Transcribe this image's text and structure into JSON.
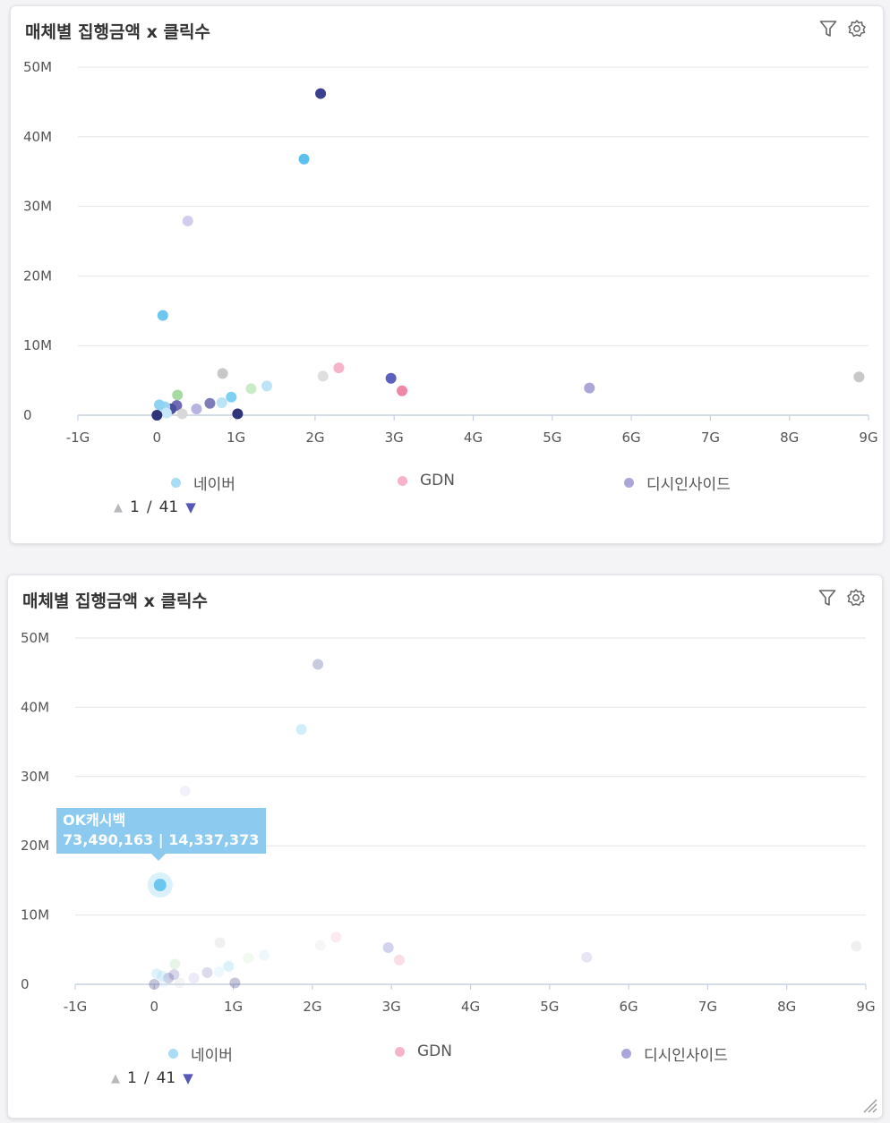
{
  "panels": [
    {
      "title": "매체별 집행금액 x 클릭수",
      "pager": {
        "current": "1",
        "separator": "/",
        "total": "41"
      }
    },
    {
      "title": "매체별 집행금액 x 클릭수",
      "pager": {
        "current": "1",
        "separator": "/",
        "total": "41"
      },
      "tooltip": {
        "name": "OK캐시백",
        "value": "73,490,163 | 14,337,373"
      }
    }
  ],
  "legend": [
    {
      "label": "네이버",
      "color": "#a9dcf5"
    },
    {
      "label": "GDN",
      "color": "#f7b3c9"
    },
    {
      "label": "디시인사이드",
      "color": "#aaa6da"
    }
  ],
  "icons": {
    "filter": "filter-icon",
    "settings": "gear-icon",
    "resize": "resize-grip-icon"
  },
  "chart_data": [
    {
      "type": "scatter",
      "xlim": [
        -1000000000,
        9000000000
      ],
      "ylim": [
        0,
        50000000
      ],
      "x_ticks": [
        -1000000000,
        0,
        1000000000,
        2000000000,
        3000000000,
        4000000000,
        5000000000,
        6000000000,
        7000000000,
        8000000000,
        9000000000
      ],
      "x_tick_labels": [
        "-1G",
        "0",
        "1G",
        "2G",
        "3G",
        "4G",
        "5G",
        "6G",
        "7G",
        "8G",
        "9G"
      ],
      "y_ticks": [
        0,
        10000000,
        20000000,
        30000000,
        40000000,
        50000000
      ],
      "y_tick_labels": [
        "0",
        "10M",
        "20M",
        "30M",
        "40M",
        "50M"
      ],
      "grid": "horizontal",
      "legend_position": "bottom",
      "points": [
        {
          "x": 2070000000,
          "y": 46200000,
          "color": "#3a3f8f"
        },
        {
          "x": 1860000000,
          "y": 36800000,
          "color": "#5bc0ee"
        },
        {
          "x": 390000000,
          "y": 27900000,
          "color": "#d2cdef"
        },
        {
          "x": 73490163,
          "y": 14337373,
          "color": "#6cc6ef"
        },
        {
          "x": 830000000,
          "y": 6000000,
          "color": "#c8c8c8"
        },
        {
          "x": 2300000000,
          "y": 6800000,
          "color": "#f7b3c9"
        },
        {
          "x": 2100000000,
          "y": 5600000,
          "color": "#dedede"
        },
        {
          "x": 2960000000,
          "y": 5300000,
          "color": "#5b5fbe"
        },
        {
          "x": 3100000000,
          "y": 3500000,
          "color": "#ef86a5"
        },
        {
          "x": 5470000000,
          "y": 3900000,
          "color": "#aaa6da"
        },
        {
          "x": 8880000000,
          "y": 5500000,
          "color": "#c8c8c8"
        },
        {
          "x": 1390000000,
          "y": 4200000,
          "color": "#bde3f7"
        },
        {
          "x": 1190000000,
          "y": 3800000,
          "color": "#c9ecc7"
        },
        {
          "x": 940000000,
          "y": 2600000,
          "color": "#7fd0f2"
        },
        {
          "x": 820000000,
          "y": 1800000,
          "color": "#bde3f7"
        },
        {
          "x": 670000000,
          "y": 1700000,
          "color": "#7f7db8"
        },
        {
          "x": 500000000,
          "y": 900000,
          "color": "#b8b4e0"
        },
        {
          "x": 260000000,
          "y": 2900000,
          "color": "#a8dba4"
        },
        {
          "x": 250000000,
          "y": 1400000,
          "color": "#6f6cb3"
        },
        {
          "x": 180000000,
          "y": 900000,
          "color": "#4c4f9e"
        },
        {
          "x": 100000000,
          "y": 1200000,
          "color": "#9cd4f2"
        },
        {
          "x": 30000000,
          "y": 1500000,
          "color": "#8fd3f2"
        },
        {
          "x": 120000000,
          "y": 300000,
          "color": "#c6e7f7"
        },
        {
          "x": 320000000,
          "y": 200000,
          "color": "#d8d8d8"
        },
        {
          "x": 0,
          "y": 0,
          "color": "#2f3478"
        },
        {
          "x": 1020000000,
          "y": 200000,
          "color": "#2f3478"
        }
      ]
    },
    {
      "type": "scatter",
      "xlim": [
        -1000000000,
        9000000000
      ],
      "ylim": [
        0,
        50000000
      ],
      "x_ticks": [
        -1000000000,
        0,
        1000000000,
        2000000000,
        3000000000,
        4000000000,
        5000000000,
        6000000000,
        7000000000,
        8000000000,
        9000000000
      ],
      "x_tick_labels": [
        "-1G",
        "0",
        "1G",
        "2G",
        "3G",
        "4G",
        "5G",
        "6G",
        "7G",
        "8G",
        "9G"
      ],
      "y_ticks": [
        0,
        10000000,
        20000000,
        30000000,
        40000000,
        50000000
      ],
      "y_tick_labels": [
        "0",
        "10M",
        "20M",
        "30M",
        "40M",
        "50M"
      ],
      "grid": "horizontal",
      "legend_position": "bottom",
      "highlighted_point": 3,
      "points": [
        {
          "x": 2070000000,
          "y": 46200000,
          "color": "#3a3f8f"
        },
        {
          "x": 1860000000,
          "y": 36800000,
          "color": "#5bc0ee"
        },
        {
          "x": 390000000,
          "y": 27900000,
          "color": "#d2cdef"
        },
        {
          "x": 73490163,
          "y": 14337373,
          "color": "#6cc6ef"
        },
        {
          "x": 830000000,
          "y": 6000000,
          "color": "#c8c8c8"
        },
        {
          "x": 2300000000,
          "y": 6800000,
          "color": "#f7b3c9"
        },
        {
          "x": 2100000000,
          "y": 5600000,
          "color": "#dedede"
        },
        {
          "x": 2960000000,
          "y": 5300000,
          "color": "#5b5fbe"
        },
        {
          "x": 3100000000,
          "y": 3500000,
          "color": "#ef86a5"
        },
        {
          "x": 5470000000,
          "y": 3900000,
          "color": "#aaa6da"
        },
        {
          "x": 8880000000,
          "y": 5500000,
          "color": "#c8c8c8"
        },
        {
          "x": 1390000000,
          "y": 4200000,
          "color": "#bde3f7"
        },
        {
          "x": 1190000000,
          "y": 3800000,
          "color": "#c9ecc7"
        },
        {
          "x": 940000000,
          "y": 2600000,
          "color": "#7fd0f2"
        },
        {
          "x": 820000000,
          "y": 1800000,
          "color": "#bde3f7"
        },
        {
          "x": 670000000,
          "y": 1700000,
          "color": "#7f7db8"
        },
        {
          "x": 500000000,
          "y": 900000,
          "color": "#b8b4e0"
        },
        {
          "x": 260000000,
          "y": 2900000,
          "color": "#a8dba4"
        },
        {
          "x": 250000000,
          "y": 1400000,
          "color": "#6f6cb3"
        },
        {
          "x": 180000000,
          "y": 900000,
          "color": "#4c4f9e"
        },
        {
          "x": 100000000,
          "y": 1200000,
          "color": "#9cd4f2"
        },
        {
          "x": 30000000,
          "y": 1500000,
          "color": "#8fd3f2"
        },
        {
          "x": 120000000,
          "y": 300000,
          "color": "#c6e7f7"
        },
        {
          "x": 320000000,
          "y": 200000,
          "color": "#d8d8d8"
        },
        {
          "x": 0,
          "y": 0,
          "color": "#2f3478"
        },
        {
          "x": 1020000000,
          "y": 200000,
          "color": "#2f3478"
        }
      ]
    }
  ]
}
